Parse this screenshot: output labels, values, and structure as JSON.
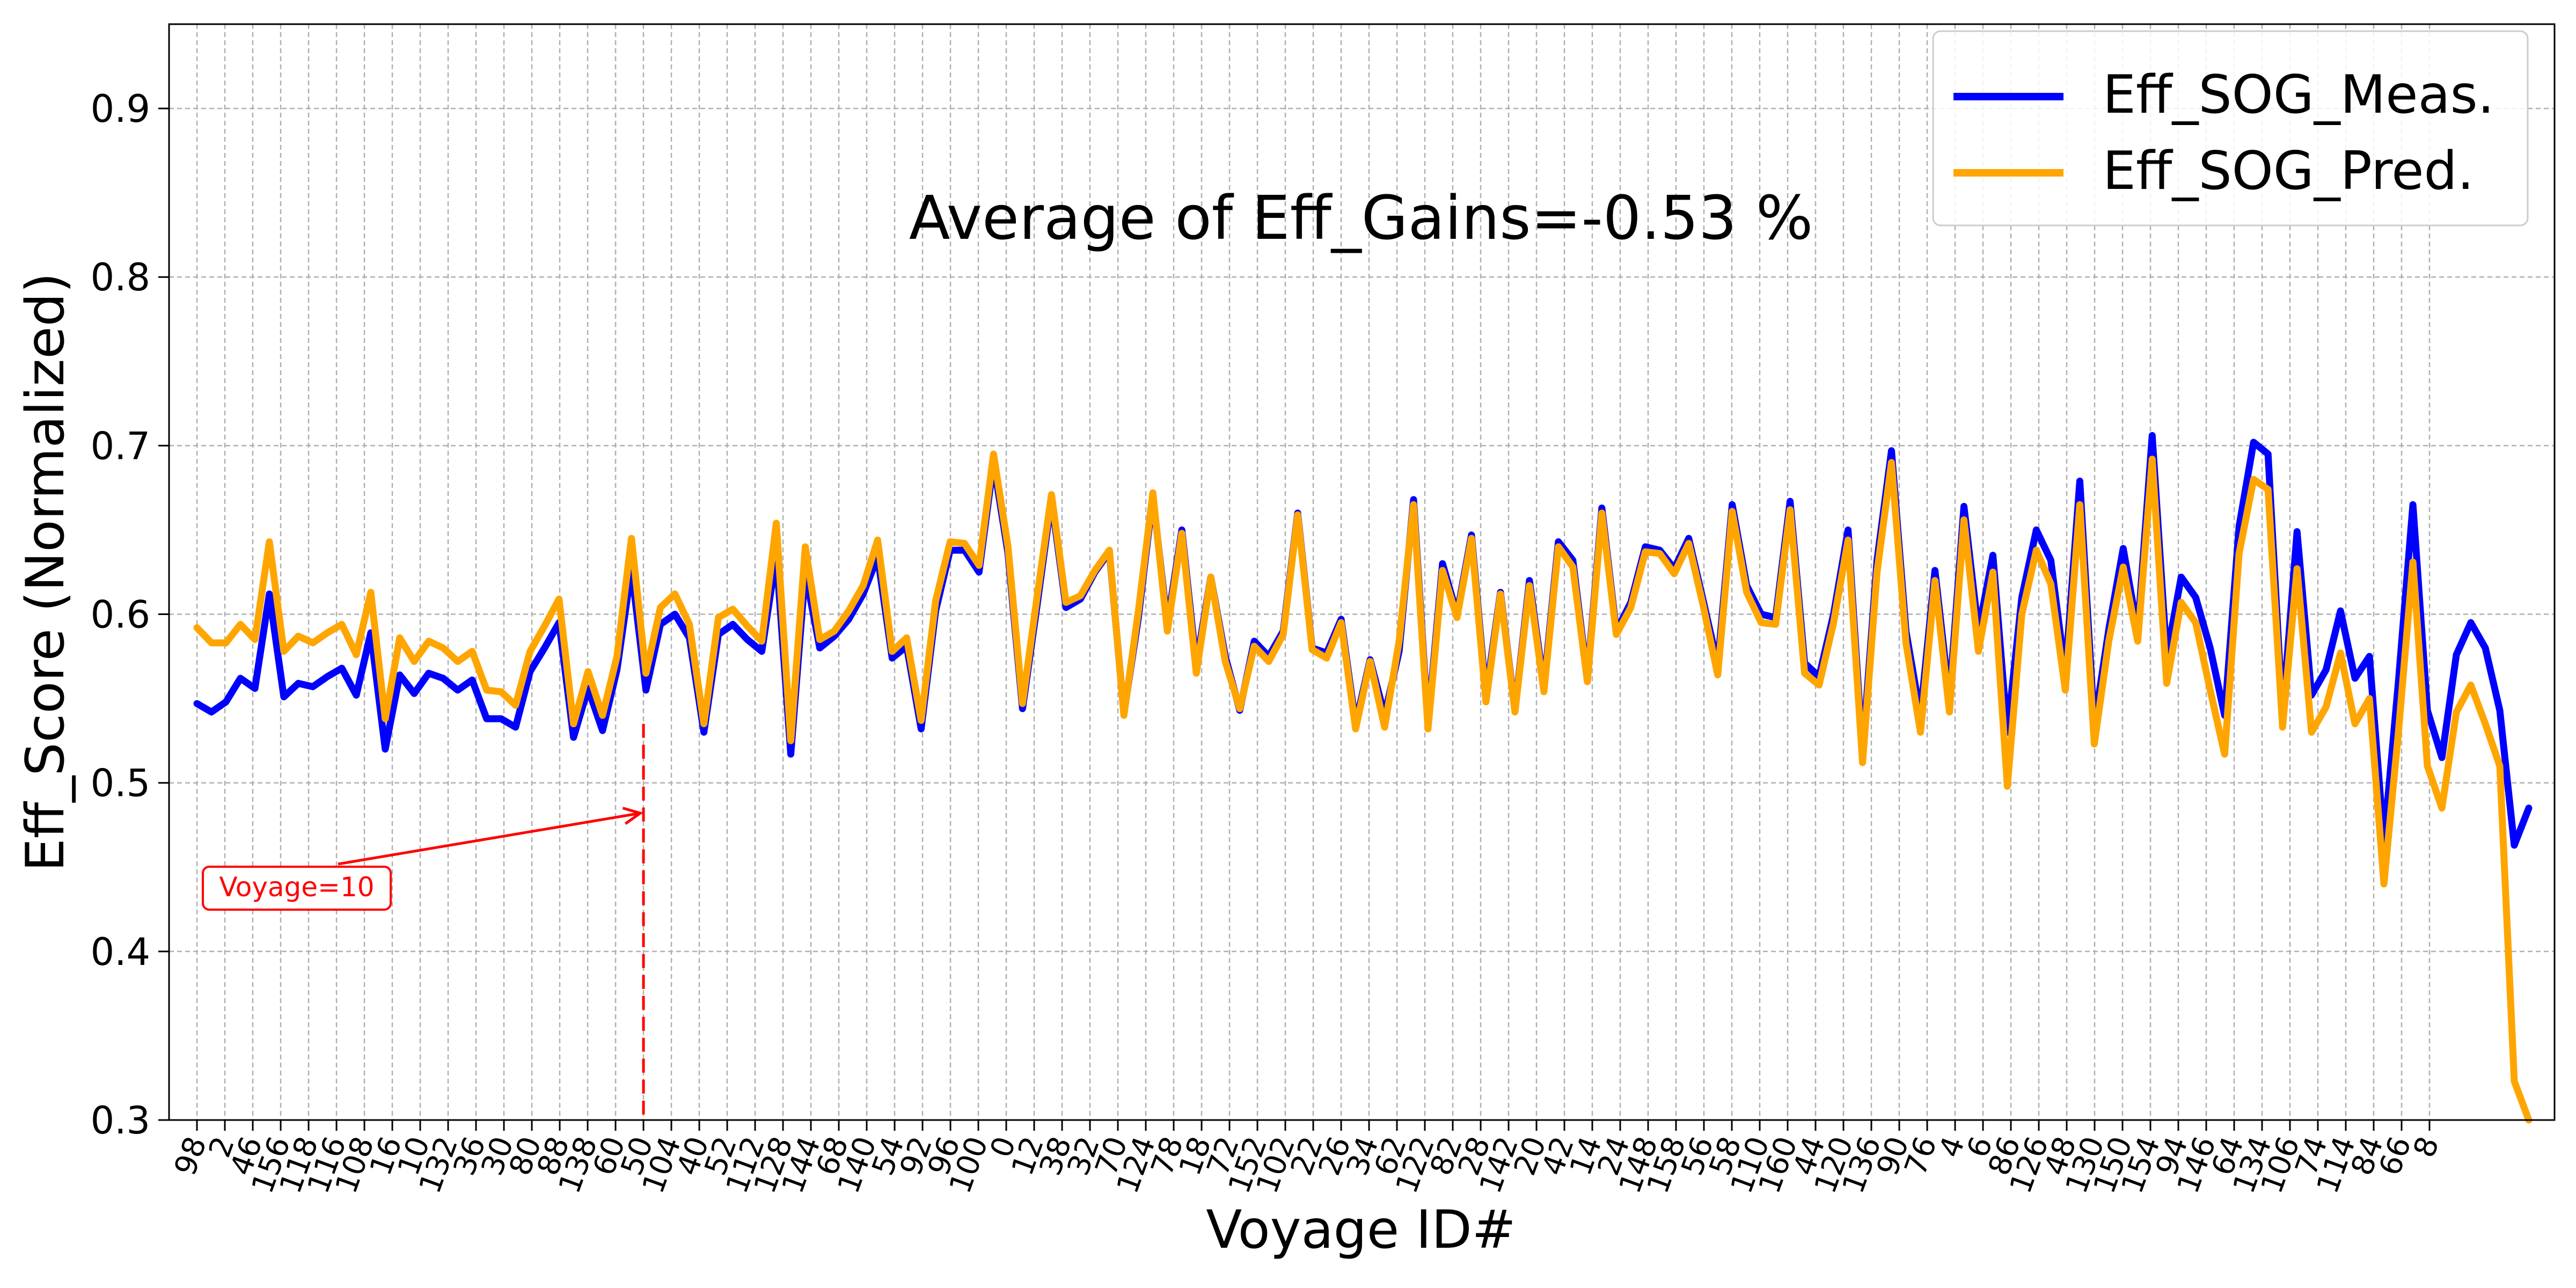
{
  "chart_data": {
    "type": "line",
    "title": "",
    "annotation_text": "Average of Eff_Gains=-0.53 %",
    "xlabel": "Voyage ID#",
    "ylabel": "Eff_Score (Normalized)",
    "ylim": [
      0.3,
      0.95
    ],
    "yticks": [
      "0.3",
      "0.4",
      "0.5",
      "0.6",
      "0.7",
      "0.8",
      "0.9"
    ],
    "grid": true,
    "legend_position": "top-right",
    "x_tick_labels": [
      "98",
      "2",
      "46",
      "156",
      "118",
      "116",
      "108",
      "16",
      "10",
      "132",
      "36",
      "30",
      "80",
      "88",
      "138",
      "60",
      "50",
      "104",
      "40",
      "52",
      "112",
      "128",
      "144",
      "68",
      "140",
      "54",
      "92",
      "96",
      "100",
      "0",
      "12",
      "38",
      "32",
      "70",
      "124",
      "78",
      "18",
      "72",
      "152",
      "102",
      "22",
      "26",
      "34",
      "62",
      "122",
      "82",
      "28",
      "142",
      "20",
      "42",
      "14",
      "24",
      "148",
      "158",
      "56",
      "58",
      "110",
      "160",
      "44",
      "120",
      "136",
      "90",
      "76",
      "4",
      "6",
      "86",
      "126",
      "48",
      "130",
      "150",
      "154",
      "94",
      "146",
      "64",
      "134",
      "106",
      "74",
      "114",
      "84",
      "66",
      "8"
    ],
    "marker": {
      "label": "Voyage=10",
      "x_index": 16,
      "y_top": 0.535,
      "color": "#ff0000"
    },
    "series": [
      {
        "name": "Eff_SOG_Meas.",
        "color": "#0000ff",
        "values": [
          0.547,
          0.542,
          0.548,
          0.562,
          0.556,
          0.612,
          0.551,
          0.559,
          0.557,
          0.563,
          0.568,
          0.552,
          0.589,
          0.52,
          0.564,
          0.553,
          0.565,
          0.562,
          0.555,
          0.561,
          0.538,
          0.538,
          0.533,
          0.566,
          0.58,
          0.595,
          0.527,
          0.556,
          0.531,
          0.567,
          0.627,
          0.555,
          0.594,
          0.6,
          0.586,
          0.53,
          0.588,
          0.594,
          0.585,
          0.578,
          0.635,
          0.517,
          0.625,
          0.58,
          0.587,
          0.597,
          0.612,
          0.634,
          0.574,
          0.581,
          0.532,
          0.602,
          0.638,
          0.638,
          0.625,
          0.69,
          0.636,
          0.544,
          0.605,
          0.668,
          0.604,
          0.609,
          0.625,
          0.637,
          0.541,
          0.598,
          0.67,
          0.594,
          0.65,
          0.57,
          0.622,
          0.575,
          0.543,
          0.584,
          0.575,
          0.59,
          0.66,
          0.58,
          0.577,
          0.597,
          0.535,
          0.573,
          0.54,
          0.578,
          0.668,
          0.535,
          0.63,
          0.6,
          0.647,
          0.552,
          0.613,
          0.543,
          0.62,
          0.557,
          0.643,
          0.632,
          0.562,
          0.663,
          0.59,
          0.607,
          0.64,
          0.638,
          0.627,
          0.645,
          0.608,
          0.57,
          0.665,
          0.617,
          0.6,
          0.598,
          0.667,
          0.571,
          0.563,
          0.6,
          0.65,
          0.518,
          0.632,
          0.697,
          0.59,
          0.54,
          0.626,
          0.55,
          0.664,
          0.59,
          0.635,
          0.53,
          0.61,
          0.65,
          0.632,
          0.565,
          0.679,
          0.534,
          0.591,
          0.639,
          0.59,
          0.706,
          0.575,
          0.622,
          0.61,
          0.58,
          0.54,
          0.652,
          0.702,
          0.695,
          0.54,
          0.649,
          0.552,
          0.567,
          0.602,
          0.562,
          0.575,
          0.465,
          0.56,
          0.665,
          0.543,
          0.515,
          0.576,
          0.595,
          0.58,
          0.543,
          0.463,
          0.485
        ]
      },
      {
        "name": "Eff_SOG_Pred.",
        "color": "#ffa500",
        "values": [
          0.592,
          0.583,
          0.583,
          0.594,
          0.585,
          0.643,
          0.578,
          0.587,
          0.583,
          0.589,
          0.594,
          0.576,
          0.613,
          0.538,
          0.586,
          0.572,
          0.584,
          0.58,
          0.572,
          0.578,
          0.555,
          0.554,
          0.546,
          0.578,
          0.593,
          0.609,
          0.535,
          0.566,
          0.54,
          0.575,
          0.645,
          0.565,
          0.604,
          0.612,
          0.594,
          0.535,
          0.598,
          0.603,
          0.593,
          0.584,
          0.654,
          0.525,
          0.64,
          0.585,
          0.59,
          0.602,
          0.617,
          0.644,
          0.578,
          0.586,
          0.537,
          0.608,
          0.643,
          0.642,
          0.629,
          0.695,
          0.64,
          0.547,
          0.61,
          0.671,
          0.607,
          0.611,
          0.626,
          0.638,
          0.54,
          0.602,
          0.672,
          0.59,
          0.648,
          0.565,
          0.622,
          0.572,
          0.544,
          0.581,
          0.572,
          0.588,
          0.659,
          0.579,
          0.574,
          0.595,
          0.532,
          0.572,
          0.533,
          0.584,
          0.665,
          0.532,
          0.626,
          0.598,
          0.645,
          0.548,
          0.612,
          0.542,
          0.617,
          0.554,
          0.64,
          0.628,
          0.56,
          0.66,
          0.588,
          0.604,
          0.637,
          0.636,
          0.624,
          0.642,
          0.605,
          0.564,
          0.661,
          0.613,
          0.595,
          0.594,
          0.662,
          0.565,
          0.558,
          0.595,
          0.644,
          0.512,
          0.625,
          0.69,
          0.583,
          0.53,
          0.62,
          0.542,
          0.656,
          0.578,
          0.625,
          0.498,
          0.6,
          0.638,
          0.618,
          0.555,
          0.665,
          0.523,
          0.584,
          0.628,
          0.584,
          0.692,
          0.559,
          0.607,
          0.595,
          0.555,
          0.517,
          0.636,
          0.68,
          0.674,
          0.533,
          0.627,
          0.53,
          0.545,
          0.577,
          0.535,
          0.55,
          0.44,
          0.53,
          0.631,
          0.51,
          0.485,
          0.542,
          0.558,
          0.535,
          0.51,
          0.323,
          0.3
        ]
      }
    ]
  }
}
